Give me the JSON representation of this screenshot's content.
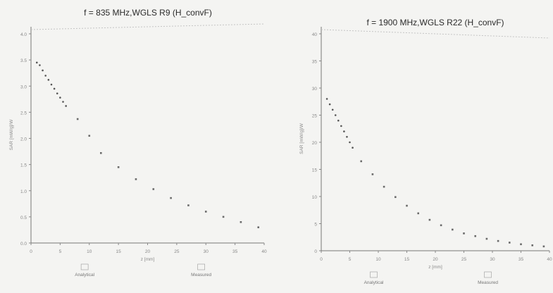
{
  "chart_data": [
    {
      "type": "scatter",
      "title": "f = 835 MHz,WGLS R9 (H_convF)",
      "xlabel": "z [mm]",
      "ylabel": "SAR [mW/g]/W",
      "xlim": [
        0,
        40
      ],
      "ylim": [
        0,
        4.0
      ],
      "xticks": [
        "0",
        "5",
        "10",
        "15",
        "20",
        "25",
        "30",
        "35",
        "40"
      ],
      "yticks": [
        "0.0",
        "0.5",
        "1.0",
        "1.5",
        "2.0",
        "2.5",
        "3.0",
        "3.5",
        "4.0"
      ],
      "grid": false,
      "legend": {
        "position": "bottom",
        "entries": [
          {
            "name": "Analytical",
            "marker": "x"
          },
          {
            "name": "Measured",
            "marker": "o"
          }
        ]
      },
      "series": [
        {
          "name": "Measured",
          "marker": "dot",
          "x": [
            1,
            1.5,
            2,
            2.5,
            3,
            3.5,
            4,
            4.5,
            5,
            5.5,
            6
          ],
          "y": [
            3.45,
            3.4,
            3.3,
            3.2,
            3.12,
            3.03,
            2.95,
            2.86,
            2.78,
            2.7,
            2.62
          ]
        },
        {
          "name": "Analytical",
          "marker": "x",
          "x": [
            8,
            10,
            12,
            15,
            18,
            21,
            24,
            27,
            30,
            33,
            36,
            39
          ],
          "y": [
            2.37,
            2.05,
            1.72,
            1.45,
            1.22,
            1.03,
            0.86,
            0.72,
            0.6,
            0.5,
            0.4,
            0.3
          ]
        }
      ]
    },
    {
      "type": "scatter",
      "title": "f = 1900 MHz,WGLS R22 (H_convF)",
      "xlabel": "z [mm]",
      "ylabel": "SAR [mW/g]/W",
      "xlim": [
        0,
        40
      ],
      "ylim": [
        0,
        40
      ],
      "xticks": [
        "0",
        "5",
        "10",
        "15",
        "20",
        "25",
        "30",
        "35",
        "40"
      ],
      "yticks": [
        "0",
        "5",
        "10",
        "15",
        "20",
        "25",
        "30",
        "35",
        "40"
      ],
      "grid": false,
      "legend": {
        "position": "bottom",
        "entries": [
          {
            "name": "Analytical",
            "marker": "x"
          },
          {
            "name": "Measured",
            "marker": "o"
          }
        ]
      },
      "series": [
        {
          "name": "Measured",
          "marker": "dot",
          "x": [
            1,
            1.5,
            2,
            2.5,
            3,
            3.5,
            4,
            4.5,
            5,
            5.5
          ],
          "y": [
            28,
            27,
            26,
            25,
            24,
            23,
            22,
            21,
            20,
            19
          ]
        },
        {
          "name": "Analytical",
          "marker": "x",
          "x": [
            7,
            9,
            11,
            13,
            15,
            17,
            19,
            21,
            23,
            25,
            27,
            29,
            31,
            33,
            35,
            37,
            39
          ],
          "y": [
            16.5,
            14.1,
            11.8,
            9.9,
            8.3,
            6.9,
            5.7,
            4.7,
            3.9,
            3.2,
            2.7,
            2.2,
            1.8,
            1.5,
            1.2,
            1.0,
            0.8
          ]
        }
      ]
    }
  ]
}
